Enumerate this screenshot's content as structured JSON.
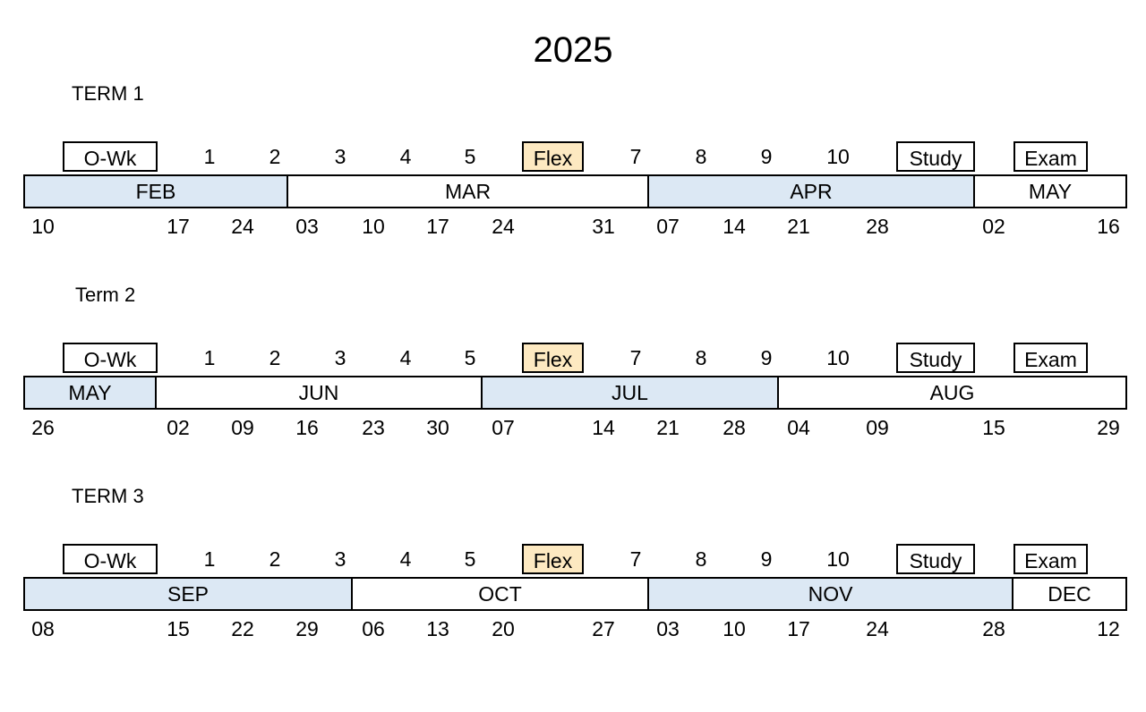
{
  "title": "2025",
  "terms": [
    {
      "label": "TERM 1",
      "weeks": [
        {
          "text": "O-Wk",
          "type": "boxed"
        },
        {
          "text": "1",
          "type": "plain"
        },
        {
          "text": "2",
          "type": "plain"
        },
        {
          "text": "3",
          "type": "plain"
        },
        {
          "text": "4",
          "type": "plain"
        },
        {
          "text": "5",
          "type": "plain"
        },
        {
          "text": "Flex",
          "type": "flex"
        },
        {
          "text": "7",
          "type": "plain"
        },
        {
          "text": "8",
          "type": "plain"
        },
        {
          "text": "9",
          "type": "plain"
        },
        {
          "text": "10",
          "type": "plain"
        },
        {
          "text": "Study",
          "type": "boxed"
        },
        {
          "text": "Exam",
          "type": "boxed"
        }
      ],
      "months": [
        {
          "name": "FEB",
          "shaded": true
        },
        {
          "name": "MAR",
          "shaded": false
        },
        {
          "name": "APR",
          "shaded": true
        },
        {
          "name": "MAY",
          "shaded": false
        }
      ],
      "dates": [
        "10",
        "17",
        "24",
        "03",
        "10",
        "17",
        "24",
        "31",
        "07",
        "14",
        "21",
        "28",
        "02",
        "16"
      ]
    },
    {
      "label": "Term 2",
      "weeks": [
        {
          "text": "O-Wk",
          "type": "boxed"
        },
        {
          "text": "1",
          "type": "plain"
        },
        {
          "text": "2",
          "type": "plain"
        },
        {
          "text": "3",
          "type": "plain"
        },
        {
          "text": "4",
          "type": "plain"
        },
        {
          "text": "5",
          "type": "plain"
        },
        {
          "text": "Flex",
          "type": "flex"
        },
        {
          "text": "7",
          "type": "plain"
        },
        {
          "text": "8",
          "type": "plain"
        },
        {
          "text": "9",
          "type": "plain"
        },
        {
          "text": "10",
          "type": "plain"
        },
        {
          "text": "Study",
          "type": "boxed"
        },
        {
          "text": "Exam",
          "type": "boxed"
        }
      ],
      "months": [
        {
          "name": "MAY",
          "shaded": true
        },
        {
          "name": "JUN",
          "shaded": false
        },
        {
          "name": "JUL",
          "shaded": true
        },
        {
          "name": "AUG",
          "shaded": false
        }
      ],
      "dates": [
        "26",
        "02",
        "09",
        "16",
        "23",
        "30",
        "07",
        "14",
        "21",
        "28",
        "04",
        "09",
        "15",
        "29"
      ]
    },
    {
      "label": "TERM 3",
      "weeks": [
        {
          "text": "O-Wk",
          "type": "boxed"
        },
        {
          "text": "1",
          "type": "plain"
        },
        {
          "text": "2",
          "type": "plain"
        },
        {
          "text": "3",
          "type": "plain"
        },
        {
          "text": "4",
          "type": "plain"
        },
        {
          "text": "5",
          "type": "plain"
        },
        {
          "text": "Flex",
          "type": "flex"
        },
        {
          "text": "7",
          "type": "plain"
        },
        {
          "text": "8",
          "type": "plain"
        },
        {
          "text": "9",
          "type": "plain"
        },
        {
          "text": "10",
          "type": "plain"
        },
        {
          "text": "Study",
          "type": "boxed"
        },
        {
          "text": "Exam",
          "type": "boxed"
        }
      ],
      "months": [
        {
          "name": "SEP",
          "shaded": true
        },
        {
          "name": "OCT",
          "shaded": false
        },
        {
          "name": "NOV",
          "shaded": true
        },
        {
          "name": "DEC",
          "shaded": false
        }
      ],
      "dates": [
        "08",
        "15",
        "22",
        "29",
        "06",
        "13",
        "20",
        "27",
        "03",
        "10",
        "17",
        "24",
        "28",
        "12"
      ]
    }
  ]
}
